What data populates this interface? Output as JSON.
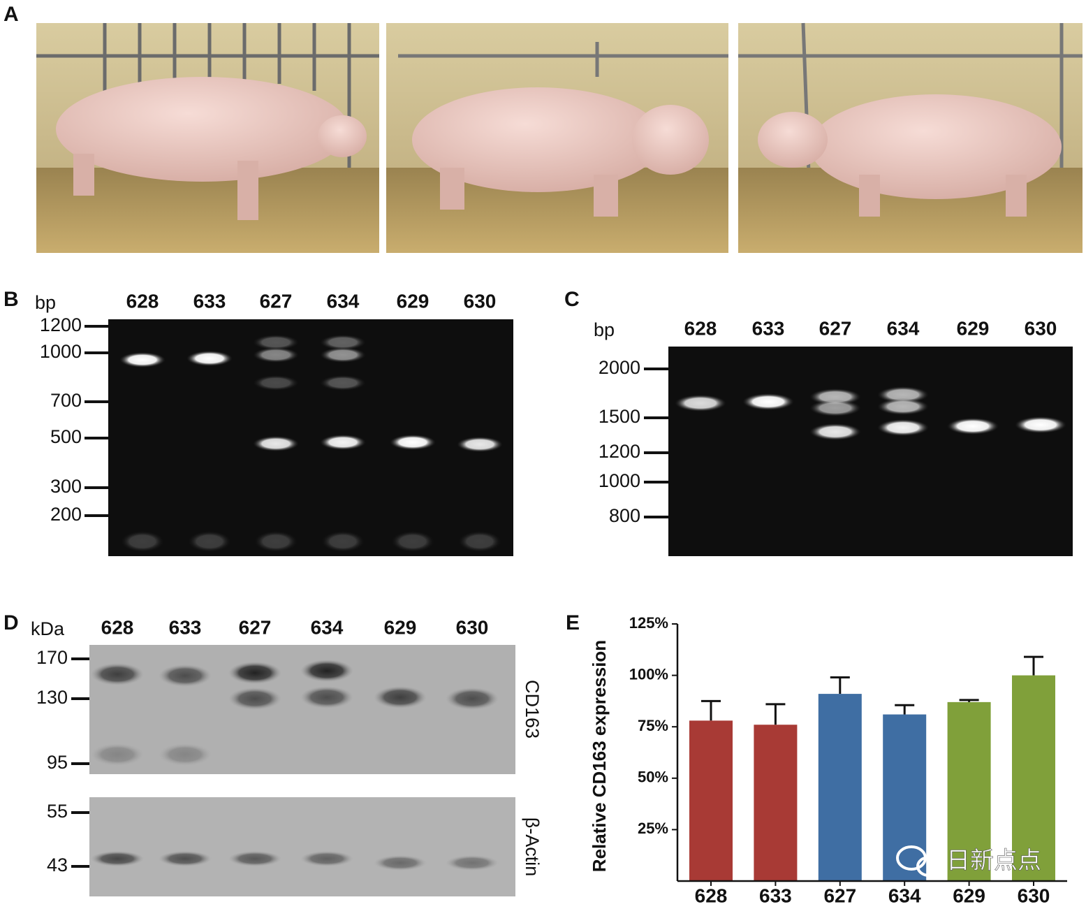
{
  "panels": {
    "A": {
      "label": "A"
    },
    "B": {
      "label": "B",
      "unit": "bp",
      "lanes": [
        "628",
        "633",
        "627",
        "634",
        "629",
        "630"
      ],
      "markers": [
        1200,
        1000,
        700,
        500,
        300,
        200
      ]
    },
    "C": {
      "label": "C",
      "unit": "bp",
      "lanes": [
        "628",
        "633",
        "627",
        "634",
        "629",
        "630"
      ],
      "markers": [
        2000,
        1500,
        1200,
        1000,
        800
      ]
    },
    "D": {
      "label": "D",
      "unit": "kDa",
      "lanes": [
        "628",
        "633",
        "627",
        "634",
        "629",
        "630"
      ],
      "markers_top": [
        170,
        130,
        95
      ],
      "markers_bottom": [
        55,
        43
      ],
      "blot_labels": [
        "CD163",
        "β-Actin"
      ]
    }
  },
  "chart_data": {
    "type": "bar",
    "panel_label": "E",
    "y_label": "Relative CD163 expression",
    "categories": [
      "628",
      "633",
      "627",
      "634",
      "629",
      "630"
    ],
    "values": [
      78,
      76,
      91,
      81,
      87,
      100
    ],
    "errors": [
      9.5,
      10,
      8,
      4.5,
      1,
      9
    ],
    "colors": [
      "#a83a35",
      "#a83a35",
      "#3f6ea3",
      "#3f6ea3",
      "#80a03a",
      "#80a03a"
    ],
    "ylim": [
      0,
      125
    ],
    "yticks": [
      {
        "value": 25,
        "label": "25%"
      },
      {
        "value": 50,
        "label": "50%"
      },
      {
        "value": 75,
        "label": "75%"
      },
      {
        "value": 100,
        "label": "100%"
      },
      {
        "value": 125,
        "label": "125%"
      }
    ]
  },
  "watermark": "日新点点"
}
